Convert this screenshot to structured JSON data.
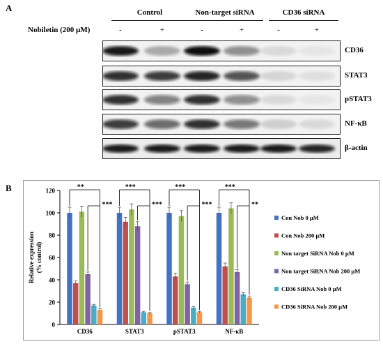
{
  "panelA": {
    "label": "A",
    "groups": [
      "Control",
      "Non-target  siRNA",
      "CD36 siRNA"
    ],
    "treatment_label": "Nobiletin (200 µM)",
    "signs": [
      "-",
      "+",
      "-",
      "+",
      "-",
      "+"
    ],
    "blots": [
      {
        "name": "CD36",
        "bands": [
          0.95,
          0.3,
          1.0,
          0.45,
          0.1,
          0.05
        ]
      },
      {
        "name": "STAT3",
        "bands": [
          0.85,
          0.8,
          0.9,
          0.7,
          0.12,
          0.08
        ]
      },
      {
        "name": "pSTAT3",
        "bands": [
          0.85,
          0.5,
          0.85,
          0.45,
          0.1,
          0.05
        ]
      },
      {
        "name": "NF-κB",
        "bands": [
          0.8,
          0.6,
          0.85,
          0.55,
          0.15,
          0.1
        ]
      },
      {
        "name": "β-actin",
        "bands": [
          0.95,
          0.95,
          0.95,
          0.95,
          0.95,
          0.9
        ]
      }
    ]
  },
  "chart_data": {
    "type": "bar",
    "panel_label": "B",
    "ylabel": "Relative expression\n(% control)",
    "xlabel": "",
    "ylim": [
      0,
      120
    ],
    "yticks": [
      0,
      20,
      40,
      60,
      80,
      100,
      120
    ],
    "categories": [
      "CD36",
      "STAT3",
      "pSTAT3",
      "NF-κB"
    ],
    "series": [
      {
        "name": "Con Nob 0 µM",
        "color": "#4472C4",
        "values": [
          100,
          100,
          100,
          100
        ],
        "errors": [
          5,
          5,
          5,
          5
        ]
      },
      {
        "name": "Con Nob 200 µM",
        "color": "#C0504D",
        "values": [
          37,
          92,
          43,
          52
        ],
        "errors": [
          2,
          4,
          3,
          3
        ]
      },
      {
        "name": "Non target SiRNA Nob 0 µM",
        "color": "#9BBB59",
        "values": [
          101,
          103,
          97,
          104
        ],
        "errors": [
          5,
          5,
          5,
          5
        ]
      },
      {
        "name": "Non target SiRNA Nob 200 µM",
        "color": "#8064A2",
        "values": [
          45,
          88,
          36,
          47
        ],
        "errors": [
          2,
          4,
          2,
          2
        ]
      },
      {
        "name": "CD36 SiRNA Nob 0 µM",
        "color": "#4BACC6",
        "values": [
          17,
          11,
          15,
          27
        ],
        "errors": [
          1,
          0.8,
          1,
          1.5
        ]
      },
      {
        "name": "CD36 SiRNA Nob 200 µM",
        "color": "#F79646",
        "values": [
          13,
          10,
          11,
          24
        ],
        "errors": [
          1,
          0.8,
          0.8,
          1.5
        ]
      }
    ],
    "significance": [
      {
        "category": "CD36",
        "outer": "**",
        "inner": "***"
      },
      {
        "category": "STAT3",
        "outer": "***",
        "inner": "***"
      },
      {
        "category": "pSTAT3",
        "outer": "***",
        "inner": "***"
      },
      {
        "category": "NF-κB",
        "outer": "***",
        "inner": "**"
      }
    ],
    "legend_position": "right"
  }
}
